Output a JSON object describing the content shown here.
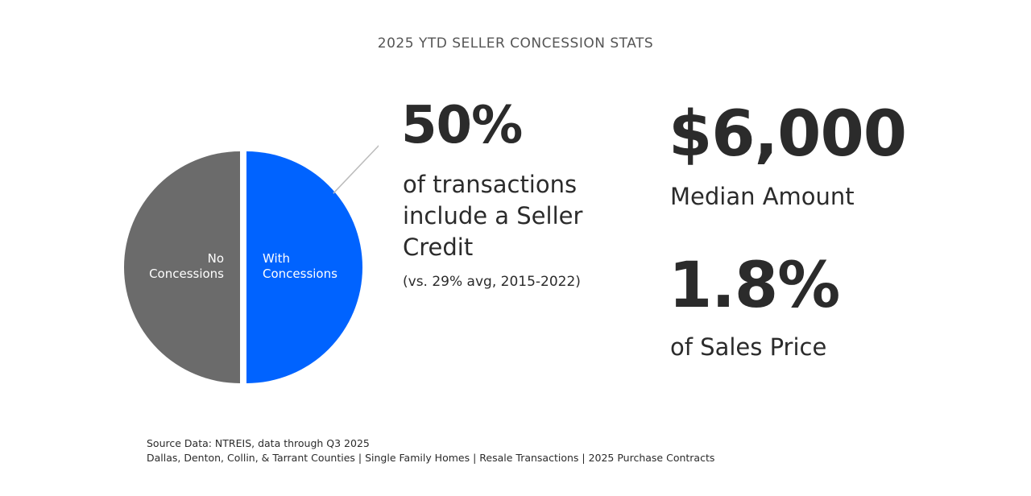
{
  "title": "2025 YTD SELLER CONCESSION STATS",
  "chart_data": {
    "type": "pie",
    "categories": [
      "No Concessions",
      "With Concessions"
    ],
    "values": [
      50,
      50
    ],
    "slice_labels": [
      "No\nConcessions",
      "With\nConcessions"
    ],
    "colors": [
      "#6b6b6b",
      "#0063ff"
    ],
    "label_color": "#ffffff"
  },
  "stat_left": {
    "value": "50%",
    "description": "of transactions include a Seller Credit",
    "note": "(vs. 29% avg, 2015-2022)"
  },
  "stat_median": {
    "value": "$6,000",
    "label": "Median Amount"
  },
  "stat_percent_price": {
    "value": "1.8%",
    "label": "of Sales Price"
  },
  "footer": {
    "line1": "Source Data:  NTREIS, data through Q3 2025",
    "line2": "Dallas, Denton, Collin, & Tarrant Counties | Single Family Homes | Resale Transactions | 2025 Purchase Contracts"
  }
}
